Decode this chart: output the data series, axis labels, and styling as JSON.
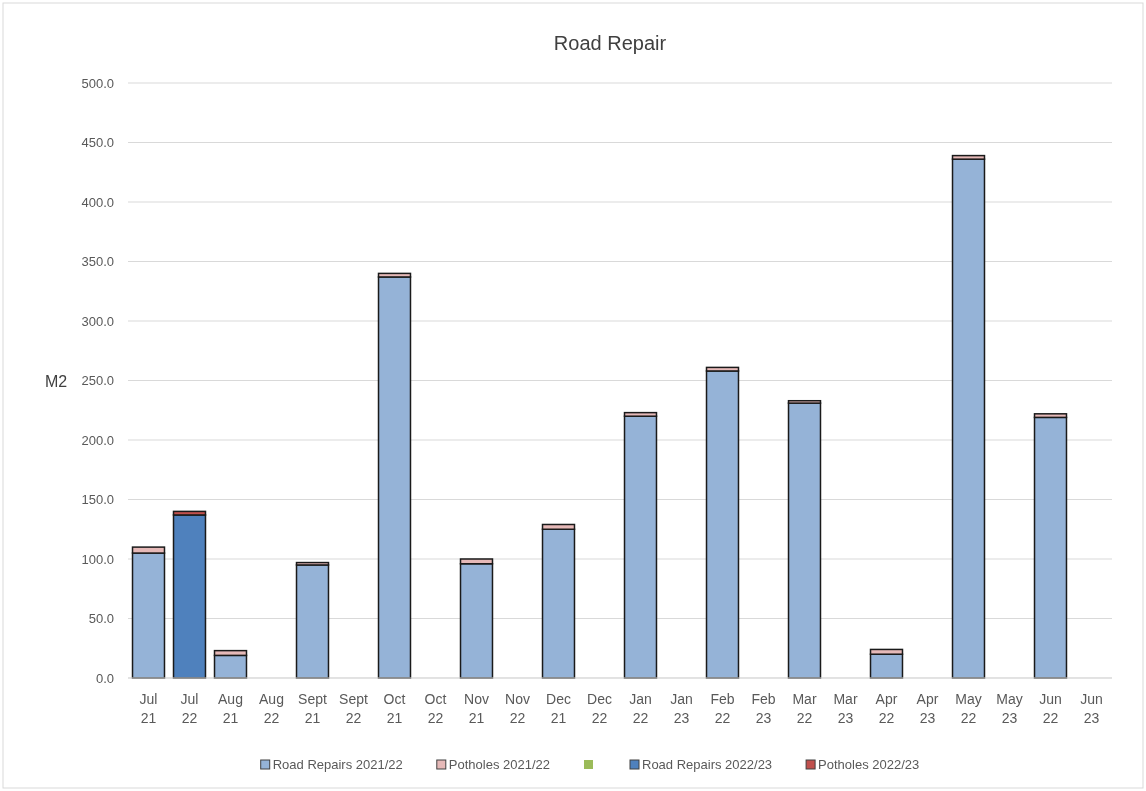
{
  "chart_data": {
    "type": "bar",
    "title": "Road Repair",
    "ylabel": "M2",
    "stacked": true,
    "categories": [
      "Jul 21",
      "Jul 22",
      "Aug 21",
      "Aug 22",
      "Sept 21",
      "Sept 22",
      "Oct 21",
      "Oct 22",
      "Nov 21",
      "Nov 22",
      "Dec 21",
      "Dec 22",
      "Jan 22",
      "Jan 23",
      "Feb 22",
      "Feb 23",
      "Mar 22",
      "Mar 23",
      "Apr 22",
      "Apr 23",
      "May 22",
      "May 23",
      "Jun 22",
      "Jun 23"
    ],
    "series": [
      {
        "name": "Road Repairs 2021/22",
        "color": "#95b3d7",
        "values": [
          105,
          null,
          19,
          null,
          95,
          null,
          337,
          null,
          96,
          null,
          125,
          null,
          220,
          null,
          258,
          null,
          231,
          null,
          20,
          null,
          436,
          null,
          219,
          null
        ]
      },
      {
        "name": "Potholes 2021/22",
        "color": "#e6b9b8",
        "values": [
          5,
          null,
          4,
          null,
          2,
          null,
          3,
          null,
          4,
          null,
          4,
          null,
          3,
          null,
          3,
          null,
          2,
          null,
          4,
          null,
          3,
          null,
          3,
          null
        ]
      },
      {
        "color": "#9bbb59",
        "values": [
          null,
          null,
          null,
          null,
          null,
          null,
          null,
          null,
          null,
          null,
          null,
          null,
          null,
          null,
          null,
          null,
          null,
          null,
          null,
          null,
          null,
          null,
          null,
          null
        ]
      },
      {
        "name": "Road Repairs 2022/23",
        "color": "#4f81bd",
        "values": [
          null,
          137,
          null,
          null,
          null,
          null,
          null,
          null,
          null,
          null,
          null,
          null,
          null,
          null,
          null,
          null,
          null,
          null,
          null,
          null,
          null,
          null,
          null,
          null
        ]
      },
      {
        "name": "Potholes 2022/23",
        "color": "#c0504d",
        "values": [
          null,
          3,
          null,
          null,
          null,
          null,
          null,
          null,
          null,
          null,
          null,
          null,
          null,
          null,
          null,
          null,
          null,
          null,
          null,
          null,
          null,
          null,
          null,
          null
        ]
      }
    ],
    "ylim": [
      0,
      500
    ],
    "yticks": [
      {
        "value": 0,
        "label": "0.0"
      },
      {
        "value": 50,
        "label": "50.0"
      },
      {
        "value": 100,
        "label": "100.0"
      },
      {
        "value": 150,
        "label": "150.0"
      },
      {
        "value": 200,
        "label": "200.0"
      },
      {
        "value": 250,
        "label": "250.0"
      },
      {
        "value": 300,
        "label": "300.0"
      },
      {
        "value": 350,
        "label": "350.0"
      },
      {
        "value": 400,
        "label": "400.0"
      },
      {
        "value": 450,
        "label": "450.0"
      },
      {
        "value": 500,
        "label": "500.0"
      }
    ],
    "grid": "y",
    "legend": "bottom"
  }
}
